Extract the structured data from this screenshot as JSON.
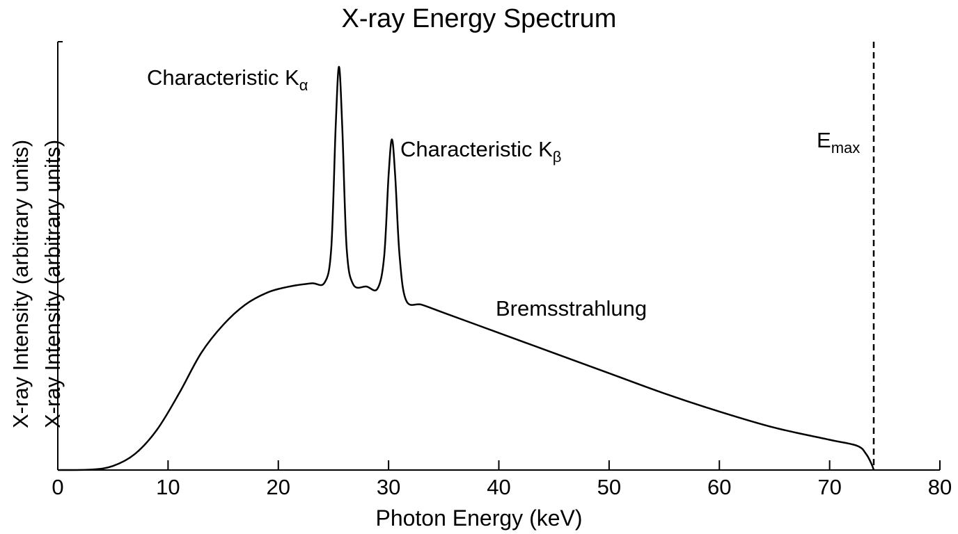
{
  "chart_data": {
    "type": "line",
    "title": "X-ray Energy Spectrum",
    "xlabel": "Photon Energy (keV)",
    "ylabel": "X-ray Intensity (arbitrary units)",
    "xlim": [
      0,
      80
    ],
    "ylim": [
      0,
      1
    ],
    "xticks": [
      "0",
      "10",
      "20",
      "30",
      "40",
      "50",
      "60",
      "70",
      "80"
    ],
    "grid": false,
    "series": [
      {
        "x": [
          0,
          3,
          5,
          7,
          9,
          11,
          13,
          15,
          17,
          19,
          21,
          23,
          24.2,
          24.8,
          25.2,
          25.5,
          25.8,
          26.2,
          26.8,
          28,
          29,
          29.6,
          30,
          30.3,
          30.6,
          31,
          31.6,
          33,
          35,
          40,
          45,
          50,
          55,
          60,
          65,
          70,
          72.5,
          73.3,
          73.8,
          74
        ],
        "y": [
          0,
          0.001,
          0.01,
          0.04,
          0.1,
          0.19,
          0.29,
          0.36,
          0.41,
          0.44,
          0.455,
          0.463,
          0.465,
          0.55,
          0.85,
          1.0,
          0.85,
          0.55,
          0.46,
          0.455,
          0.45,
          0.53,
          0.73,
          0.82,
          0.73,
          0.53,
          0.42,
          0.41,
          0.39,
          0.34,
          0.29,
          0.24,
          0.19,
          0.145,
          0.105,
          0.075,
          0.06,
          0.04,
          0.015,
          0
        ],
        "color": "#000000"
      }
    ],
    "annotations": [
      {
        "text": "Characteristic K",
        "subscript": "α",
        "x": 25.5
      },
      {
        "text": "Characteristic K",
        "subscript": "β",
        "x": 30.3
      },
      {
        "text": "Bremsstrahlung",
        "x": 45
      },
      {
        "text": "E",
        "subscript": "max",
        "x": 74
      }
    ],
    "vline": {
      "x": 74,
      "style": "dashed",
      "color": "#000000"
    }
  }
}
